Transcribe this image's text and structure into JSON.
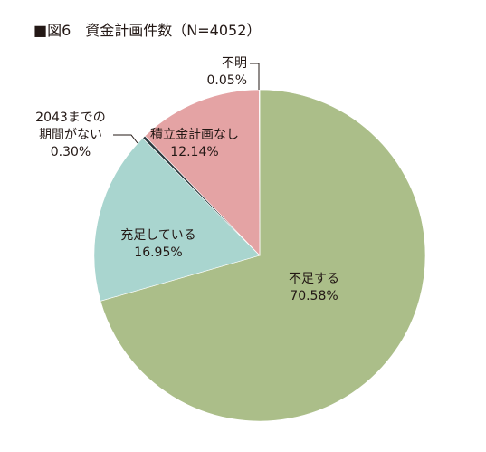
{
  "chart_data": {
    "type": "pie",
    "title": "■図6　資金計画件数（N=4052）",
    "start_angle_deg": 0,
    "direction": "clockwise",
    "slices": [
      {
        "key": "fusoku",
        "label_lines": [
          "不足する"
        ],
        "percent_text": "70.58%",
        "value": 70.58,
        "color": "#abbe89"
      },
      {
        "key": "jusoku",
        "label_lines": [
          "充足している"
        ],
        "percent_text": "16.95%",
        "value": 16.95,
        "color": "#a9d5cf"
      },
      {
        "key": "nai2043",
        "label_lines": [
          "2043までの",
          "期間がない"
        ],
        "percent_text": "0.30%",
        "value": 0.3,
        "color": "#2b3a3f"
      },
      {
        "key": "keikaku",
        "label_lines": [
          "積立金計画なし"
        ],
        "percent_text": "12.14%",
        "value": 12.14,
        "color": "#e4a3a4"
      },
      {
        "key": "fumei",
        "label_lines": [
          "不明"
        ],
        "percent_text": "0.05%",
        "value": 0.05,
        "color": "#1f4e96"
      }
    ]
  }
}
